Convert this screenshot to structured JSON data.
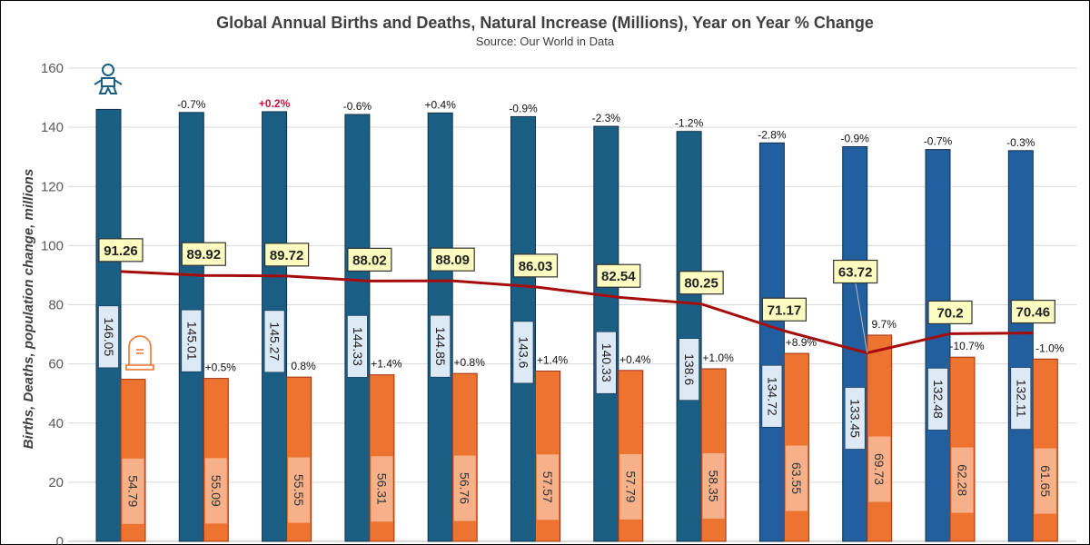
{
  "chart_data": {
    "type": "bar",
    "title": "Global Annual Births and Deaths, Natural Increase (Millions), Year on Year % Change",
    "subtitle": "Source: Our World in Data",
    "xlabel": "",
    "ylabel": "Births, Deaths, population change, millions",
    "ylim": [
      0,
      160
    ],
    "yticks": [
      "0",
      "20",
      "40",
      "60",
      "80",
      "100",
      "120",
      "140",
      "160"
    ],
    "grid": true,
    "series": [
      {
        "name": "Births",
        "type": "bar",
        "values": [
          146.05,
          145.01,
          145.27,
          144.33,
          144.85,
          143.6,
          140.33,
          138.6,
          134.72,
          133.45,
          132.48,
          132.11
        ],
        "labels": [
          "146.05",
          "145.01",
          "145.27",
          "144.33",
          "144.85",
          "143.6",
          "140.33",
          "138.6",
          "134.72",
          "133.45",
          "132.48",
          "132.11"
        ],
        "pct_change": [
          "",
          "-0.7%",
          "+0.2%",
          "-0.6%",
          "+0.4%",
          "-0.9%",
          "-2.3%",
          "-1.2%",
          "-2.8%",
          "-0.9%",
          "-0.7%",
          "-0.3%"
        ]
      },
      {
        "name": "Deaths",
        "type": "bar",
        "values": [
          54.79,
          55.09,
          55.55,
          56.31,
          56.76,
          57.57,
          57.79,
          58.35,
          63.55,
          69.73,
          62.28,
          61.65
        ],
        "labels": [
          "54.79",
          "55.09",
          "55.55",
          "56.31",
          "56.76",
          "57.57",
          "57.79",
          "58.35",
          "63.55",
          "69.73",
          "62.28",
          "61.65"
        ],
        "pct_change": [
          "",
          "+0.5%",
          "0.8%",
          "+1.4%",
          "+0.8%",
          "+1.4%",
          "+0.4%",
          "+1.0%",
          "+8.9%",
          "9.7%",
          "-10.7%",
          "-1.0%"
        ]
      },
      {
        "name": "Natural Increase",
        "type": "line",
        "values": [
          91.26,
          89.92,
          89.72,
          88.02,
          88.09,
          86.03,
          82.54,
          80.25,
          71.17,
          63.72,
          70.2,
          70.46
        ],
        "labels": [
          "91.26",
          "89.92",
          "89.72",
          "88.02",
          "88.09",
          "86.03",
          "82.54",
          "80.25",
          "71.17",
          "63.72",
          "70.2",
          "70.46"
        ]
      }
    ],
    "icons": {
      "births": "baby-icon",
      "deaths": "tombstone-icon"
    },
    "colors": {
      "births_early": "#1b5e84",
      "births_late": "#215f9f",
      "deaths": "#ec7430",
      "line": "#a50d0d",
      "label_box": "#fcfcc0",
      "births_label": "#dde9f5",
      "deaths_label": "#f6b08a",
      "highlight_pct": "#c0143c"
    }
  }
}
